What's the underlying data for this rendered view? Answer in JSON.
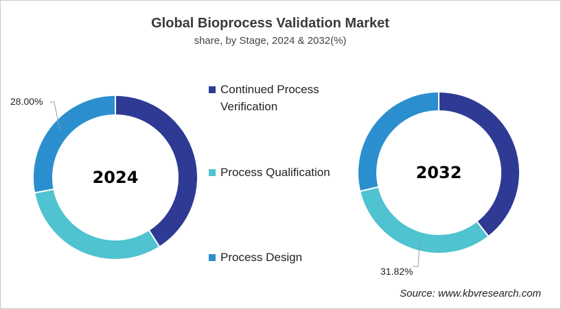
{
  "chart_data": {
    "type": "pie",
    "title": "Global Bioprocess Validation Market",
    "subtitle": "share, by Stage, 2024 & 2032(%)",
    "categories": [
      "Continued Process Verification",
      "Process Qualification",
      "Process Design"
    ],
    "colors": [
      "#2e3a94",
      "#4fc3cf",
      "#2b8fcf"
    ],
    "series": [
      {
        "name": "2024",
        "values": [
          41.0,
          31.0,
          28.0
        ],
        "labels": {
          "2": "28.00%"
        }
      },
      {
        "name": "2032",
        "values": [
          39.48,
          31.82,
          28.7
        ],
        "labels": {
          "1": "31.82%"
        }
      }
    ],
    "legend": "center",
    "source": "Source: www.kbvresearch.com"
  }
}
